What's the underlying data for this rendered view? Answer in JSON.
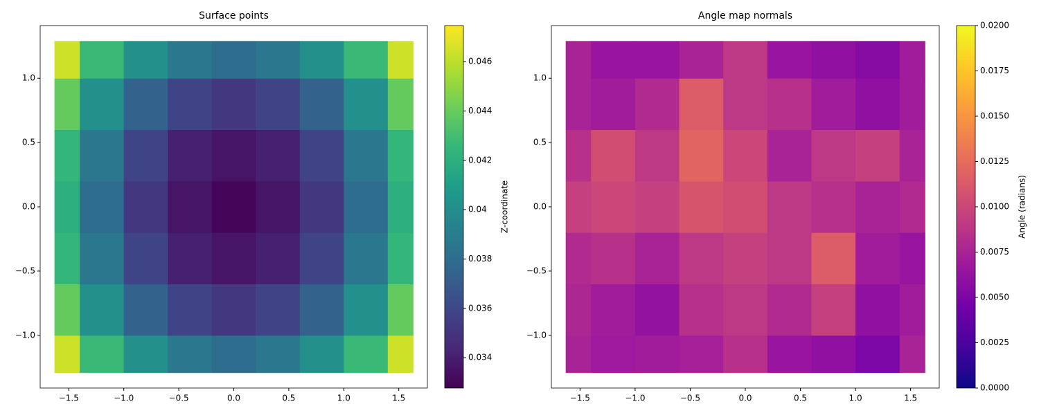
{
  "chart_data": [
    {
      "type": "heatmap",
      "title": "Surface points",
      "colormap": "viridis",
      "colorbar_label": "Z-coordinate",
      "x": [
        -1.6,
        -1.2,
        -0.8,
        -0.4,
        0,
        0.4,
        0.8,
        1.2,
        1.6
      ],
      "y": [
        -1.2,
        -0.8,
        -0.4,
        0,
        0.4,
        0.8,
        1.2
      ],
      "z": [
        [
          0.0464,
          0.0427,
          0.0401,
          0.0386,
          0.038,
          0.0386,
          0.0401,
          0.0427,
          0.0464
        ],
        [
          0.0439,
          0.0401,
          0.0374,
          0.0358,
          0.0352,
          0.0358,
          0.0374,
          0.0401,
          0.0439
        ],
        [
          0.0425,
          0.0386,
          0.0358,
          0.0341,
          0.0336,
          0.0341,
          0.0358,
          0.0386,
          0.0425
        ],
        [
          0.042,
          0.038,
          0.0352,
          0.0336,
          0.033,
          0.0336,
          0.0352,
          0.038,
          0.042
        ],
        [
          0.0425,
          0.0386,
          0.0358,
          0.0341,
          0.0336,
          0.0341,
          0.0358,
          0.0386,
          0.0425
        ],
        [
          0.0439,
          0.0401,
          0.0374,
          0.0358,
          0.0352,
          0.0358,
          0.0374,
          0.0401,
          0.0439
        ],
        [
          0.0464,
          0.0427,
          0.0401,
          0.0386,
          0.038,
          0.0386,
          0.0401,
          0.0427,
          0.0464
        ]
      ],
      "zlim": [
        0.03277,
        0.04746
      ],
      "zticks": [
        0.034,
        0.036,
        0.038,
        0.04,
        0.042,
        0.044,
        0.046
      ],
      "xlim": [
        -1.76,
        1.76
      ],
      "ylim": [
        -1.41,
        1.41
      ],
      "xticks": [
        {
          "value": -1.5,
          "label": "−1.5"
        },
        {
          "value": -1.0,
          "label": "−1.0"
        },
        {
          "value": -0.5,
          "label": "−0.5"
        },
        {
          "value": 0,
          "label": "0.0"
        },
        0.5,
        {
          "value": 1.0,
          "label": "1.0"
        },
        1.5
      ],
      "yticks": [
        {
          "value": -1.0,
          "label": "−1.0"
        },
        {
          "value": -0.5,
          "label": "−0.5"
        },
        {
          "value": 0,
          "label": "0.0"
        },
        0.5,
        {
          "value": 1.0,
          "label": "1.0"
        }
      ]
    },
    {
      "type": "heatmap",
      "title": "Angle map normals",
      "colormap": "plasma",
      "colorbar_label": "Angle (radians)",
      "x": [
        -1.6,
        -1.2,
        -0.8,
        -0.4,
        0,
        0.4,
        0.8,
        1.2,
        1.6
      ],
      "y": [
        -1.2,
        -0.8,
        -0.4,
        0,
        0.4,
        0.8,
        1.2
      ],
      "z": [
        [
          0.0075,
          0.0068,
          0.007,
          0.0072,
          0.0085,
          0.0065,
          0.006,
          0.005,
          0.0075
        ],
        [
          0.0078,
          0.007,
          0.0062,
          0.0085,
          0.009,
          0.008,
          0.0095,
          0.006,
          0.007
        ],
        [
          0.008,
          0.0085,
          0.0075,
          0.009,
          0.0095,
          0.009,
          0.0115,
          0.007,
          0.0065
        ],
        [
          0.0095,
          0.01,
          0.0095,
          0.011,
          0.0105,
          0.009,
          0.0085,
          0.0075,
          0.008
        ],
        [
          0.0085,
          0.0105,
          0.009,
          0.012,
          0.01,
          0.0075,
          0.009,
          0.0095,
          0.0075
        ],
        [
          0.0075,
          0.007,
          0.008,
          0.0115,
          0.009,
          0.0085,
          0.007,
          0.006,
          0.007
        ],
        [
          0.0075,
          0.0065,
          0.0065,
          0.0075,
          0.009,
          0.0065,
          0.006,
          0.0055,
          0.007
        ]
      ],
      "zlim": [
        0,
        0.02
      ],
      "zticks": [
        {
          "value": 0,
          "label": "0.0000"
        },
        {
          "value": 0.0025,
          "label": "0.0025"
        },
        {
          "value": 0.005,
          "label": "0.0050"
        },
        {
          "value": 0.0075,
          "label": "0.0075"
        },
        {
          "value": 0.01,
          "label": "0.0100"
        },
        {
          "value": 0.0125,
          "label": "0.0125"
        },
        {
          "value": 0.015,
          "label": "0.0150"
        },
        {
          "value": 0.0175,
          "label": "0.0175"
        },
        {
          "value": 0.02,
          "label": "0.0200"
        }
      ],
      "xlim": [
        -1.76,
        1.76
      ],
      "ylim": [
        -1.41,
        1.41
      ],
      "xticks": [
        {
          "value": -1.5,
          "label": "−1.5"
        },
        {
          "value": -1.0,
          "label": "−1.0"
        },
        {
          "value": -0.5,
          "label": "−0.5"
        },
        {
          "value": 0,
          "label": "0.0"
        },
        0.5,
        {
          "value": 1.0,
          "label": "1.0"
        },
        1.5
      ],
      "yticks": [
        {
          "value": -1.0,
          "label": "−1.0"
        },
        {
          "value": -0.5,
          "label": "−0.5"
        },
        {
          "value": 0,
          "label": "0.0"
        },
        0.5,
        {
          "value": 1.0,
          "label": "1.0"
        }
      ]
    }
  ]
}
